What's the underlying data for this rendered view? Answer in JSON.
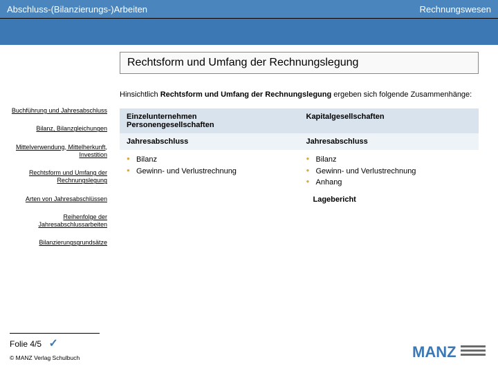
{
  "colors": {
    "header_bg": "#4a86bd",
    "band_bg": "#3c78b4",
    "table_header_bg": "#d9e3ed",
    "table_alt_bg": "#eef3f7",
    "bullet_color": "#d9a63f",
    "logo_primary": "#3c78b4",
    "logo_secondary": "#6a6a6a"
  },
  "header": {
    "left": "Abschluss-(Bilanzierungs-)Arbeiten",
    "right": "Rechnungswesen"
  },
  "sidebar": {
    "items": [
      "Buchführung und Jahresabschluss",
      "Bilanz, Bilanzgleichungen",
      "Mittelverwendung, Mittelherkunft, Investition",
      "Rechtsform und Umfang der Rechnungslegung",
      "Arten von Jahresabschlüssen",
      "Reihenfolge der Jahresabschlussarbeiten",
      "Bilanzierungsgrundsätze"
    ]
  },
  "content": {
    "title": "Rechtsform und Umfang der Rechnungslegung",
    "intro_pre": "Hinsichtlich ",
    "intro_bold": "Rechtsform und Umfang der Rechnungslegung",
    "intro_post": " ergeben sich folgende Zusammenhänge:",
    "table": {
      "col_left_header_l1": "Einzelunternehmen",
      "col_left_header_l2": "Personengesellschaften",
      "col_right_header": "Kapitalgesellschaften",
      "row_label_left": "Jahresabschluss",
      "row_label_right": "Jahresabschluss",
      "left_items": [
        "Bilanz",
        "Gewinn- und Verlustrechnung"
      ],
      "right_items": [
        "Bilanz",
        "Gewinn- und Verlustrechnung",
        "Anhang"
      ],
      "right_extra": "Lagebericht"
    }
  },
  "footer": {
    "page": "Folie 4/5",
    "copyright": "© MANZ Verlag Schulbuch",
    "logo_text": "MANZ"
  }
}
